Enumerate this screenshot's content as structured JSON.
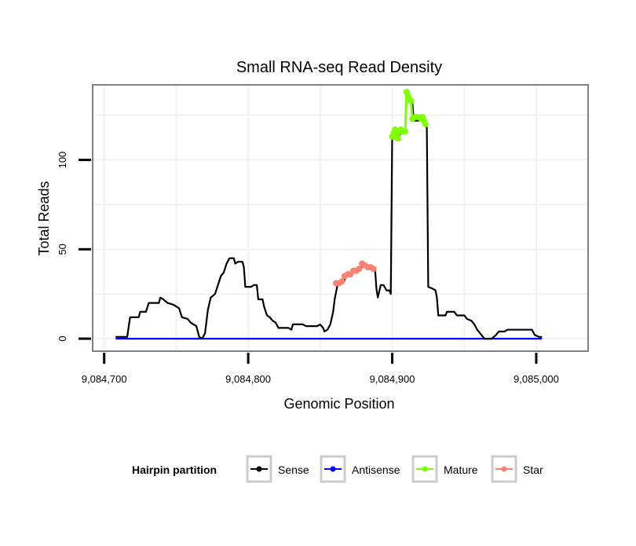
{
  "chart_data": {
    "type": "line",
    "title": "Small RNA-seq Read Density",
    "xlabel": "Genomic Position",
    "ylabel": "Total Reads",
    "xlim": [
      9084692,
      9085036
    ],
    "ylim": [
      -7,
      142
    ],
    "x_ticks": [
      9084700,
      9084800,
      9084900,
      9085000
    ],
    "x_tick_labels": [
      "9,084,700",
      "9,084,800",
      "9,084,900",
      "9,085,000"
    ],
    "y_ticks": [
      0,
      50,
      100
    ],
    "y_tick_labels": [
      "0",
      "50",
      "100"
    ],
    "grid": true,
    "legend": {
      "title": "Hairpin partition",
      "position": "bottom",
      "entries": [
        {
          "label": "Sense",
          "color": "#000000"
        },
        {
          "label": "Antisense",
          "color": "#0000ff"
        },
        {
          "label": "Mature",
          "color": "#7fff00"
        },
        {
          "label": "Star",
          "color": "#fa8072"
        }
      ]
    },
    "series": [
      {
        "name": "Sense",
        "color": "#000000",
        "points": [
          [
            9084708,
            1
          ],
          [
            9084716,
            1
          ],
          [
            9084718,
            12
          ],
          [
            9084724,
            12
          ],
          [
            9084725,
            15
          ],
          [
            9084729,
            15
          ],
          [
            9084731,
            20
          ],
          [
            9084738,
            20
          ],
          [
            9084739,
            23
          ],
          [
            9084741,
            22
          ],
          [
            9084744,
            20
          ],
          [
            9084748,
            19
          ],
          [
            9084750,
            18
          ],
          [
            9084752,
            17
          ],
          [
            9084754,
            12
          ],
          [
            9084758,
            11
          ],
          [
            9084760,
            9
          ],
          [
            9084762,
            8
          ],
          [
            9084764,
            7
          ],
          [
            9084766,
            1
          ],
          [
            9084768,
            0
          ],
          [
            9084770,
            3
          ],
          [
            9084772,
            16
          ],
          [
            9084774,
            23
          ],
          [
            9084777,
            25
          ],
          [
            9084779,
            30
          ],
          [
            9084781,
            35
          ],
          [
            9084783,
            37
          ],
          [
            9084785,
            42
          ],
          [
            9084787,
            45
          ],
          [
            9084790,
            45
          ],
          [
            9084791,
            42
          ],
          [
            9084793,
            43
          ],
          [
            9084796,
            43
          ],
          [
            9084797,
            40
          ],
          [
            9084798,
            29
          ],
          [
            9084802,
            29
          ],
          [
            9084804,
            30
          ],
          [
            9084806,
            30
          ],
          [
            9084807,
            22
          ],
          [
            9084810,
            22
          ],
          [
            9084811,
            18
          ],
          [
            9084813,
            13
          ],
          [
            9084815,
            12
          ],
          [
            9084817,
            10
          ],
          [
            9084819,
            9
          ],
          [
            9084821,
            6
          ],
          [
            9084828,
            6
          ],
          [
            9084830,
            5
          ],
          [
            9084831,
            8
          ],
          [
            9084838,
            8
          ],
          [
            9084840,
            7
          ],
          [
            9084848,
            7
          ],
          [
            9084850,
            8
          ],
          [
            9084852,
            6
          ],
          [
            9084853,
            4
          ],
          [
            9084855,
            5
          ],
          [
            9084857,
            8
          ],
          [
            9084859,
            15
          ],
          [
            9084860,
            22
          ],
          [
            9084862,
            30
          ],
          [
            9084866,
            31
          ],
          [
            9084868,
            35
          ],
          [
            9084872,
            36
          ],
          [
            9084874,
            38
          ],
          [
            9084878,
            39
          ],
          [
            9084880,
            42
          ],
          [
            9084884,
            40
          ],
          [
            9084888,
            40
          ],
          [
            9084889,
            28
          ],
          [
            9084890,
            23
          ],
          [
            9084892,
            30
          ],
          [
            9084894,
            30
          ],
          [
            9084896,
            27
          ],
          [
            9084898,
            27
          ],
          [
            9084899,
            25
          ],
          [
            9084900,
            113
          ],
          [
            9084903,
            115
          ],
          [
            9084905,
            114
          ],
          [
            9084907,
            116
          ],
          [
            9084909,
            116
          ],
          [
            9084910,
            138
          ],
          [
            9084912,
            135
          ],
          [
            9084914,
            132
          ],
          [
            9084915,
            122
          ],
          [
            9084921,
            122
          ],
          [
            9084923,
            120
          ],
          [
            9084924,
            118
          ],
          [
            9084925,
            29
          ],
          [
            9084928,
            28
          ],
          [
            9084930,
            27
          ],
          [
            9084931,
            23
          ],
          [
            9084932,
            13
          ],
          [
            9084937,
            13
          ],
          [
            9084938,
            15
          ],
          [
            9084943,
            15
          ],
          [
            9084945,
            13
          ],
          [
            9084950,
            13
          ],
          [
            9084952,
            11
          ],
          [
            9084955,
            10
          ],
          [
            9084957,
            8
          ],
          [
            9084959,
            5
          ],
          [
            9084961,
            3
          ],
          [
            9084964,
            0
          ],
          [
            9084969,
            0
          ],
          [
            9084972,
            2
          ],
          [
            9084974,
            4
          ],
          [
            9084978,
            4
          ],
          [
            9084980,
            5
          ],
          [
            9084997,
            5
          ],
          [
            9084999,
            2
          ],
          [
            9085002,
            1
          ],
          [
            9085004,
            1
          ]
        ]
      },
      {
        "name": "Antisense",
        "color": "#0000ff",
        "points": [
          [
            9084708,
            0
          ],
          [
            9085004,
            0
          ]
        ]
      },
      {
        "name": "Star",
        "color": "#fa8072",
        "points": [
          [
            9084861,
            31
          ],
          [
            9084863,
            31
          ],
          [
            9084865,
            32
          ],
          [
            9084867,
            35
          ],
          [
            9084869,
            36
          ],
          [
            9084871,
            36
          ],
          [
            9084873,
            38
          ],
          [
            9084875,
            38
          ],
          [
            9084877,
            39
          ],
          [
            9084879,
            42
          ],
          [
            9084881,
            41
          ],
          [
            9084883,
            40
          ],
          [
            9084885,
            40
          ],
          [
            9084887,
            39
          ]
        ]
      },
      {
        "name": "Mature",
        "color": "#7fff00",
        "points": [
          [
            9084900,
            113
          ],
          [
            9084901,
            115
          ],
          [
            9084902,
            117
          ],
          [
            9084903,
            113
          ],
          [
            9084904,
            112
          ],
          [
            9084905,
            116
          ],
          [
            9084906,
            117
          ],
          [
            9084907,
            116
          ],
          [
            9084909,
            116
          ],
          [
            9084910,
            138
          ],
          [
            9084911,
            136
          ],
          [
            9084912,
            134
          ],
          [
            9084913,
            133
          ],
          [
            9084914,
            123
          ],
          [
            9084916,
            124
          ],
          [
            9084918,
            124
          ],
          [
            9084920,
            123
          ],
          [
            9084921,
            124
          ],
          [
            9084922,
            122
          ],
          [
            9084923,
            120
          ]
        ]
      }
    ]
  }
}
